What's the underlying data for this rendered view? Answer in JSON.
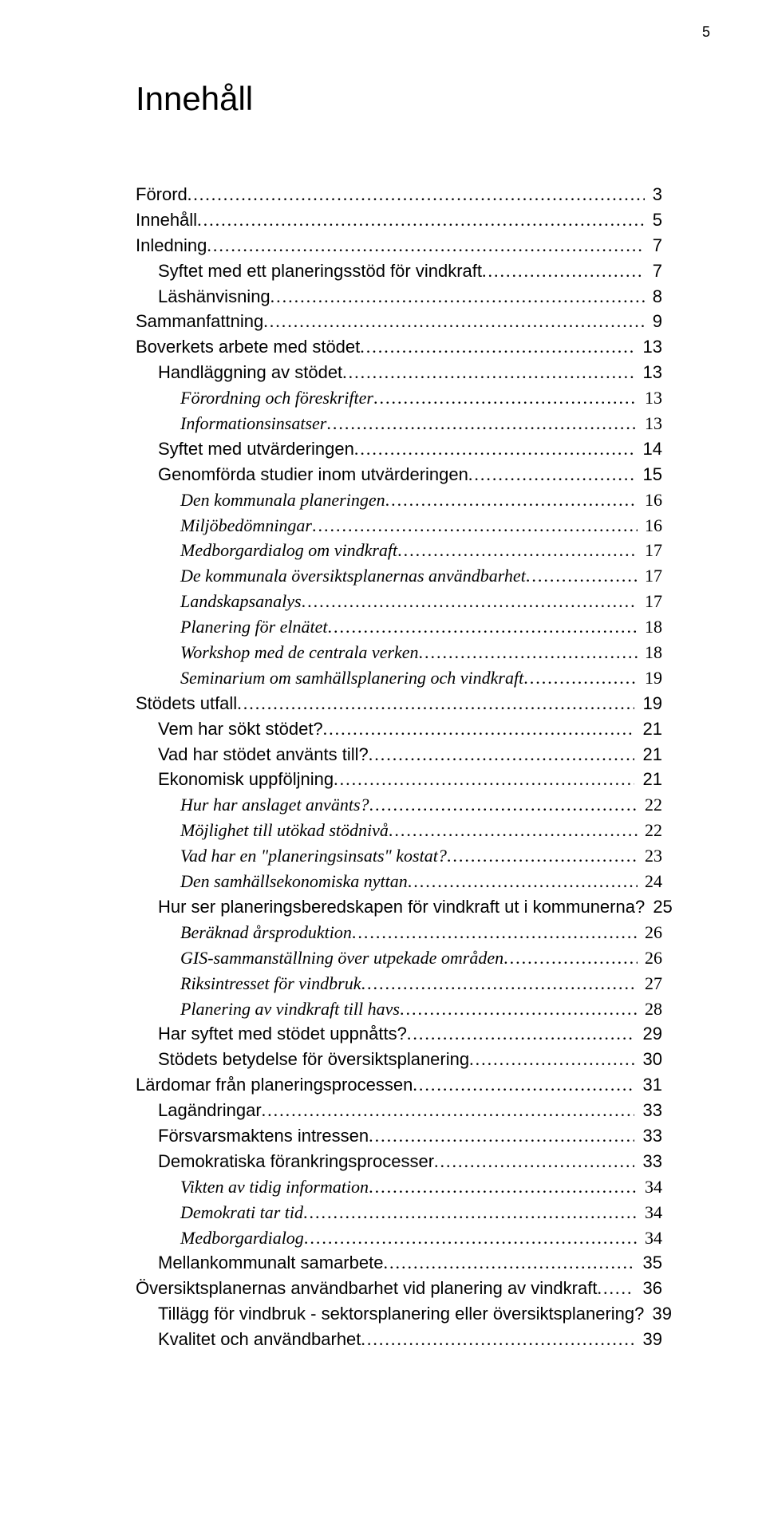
{
  "page_number": "5",
  "title": "Innehåll",
  "leader_char": ".",
  "entries": [
    {
      "label": "Förord",
      "page": "3",
      "indent": 0,
      "style": "h1"
    },
    {
      "label": "Innehåll",
      "page": "5",
      "indent": 0,
      "style": "h1"
    },
    {
      "label": "Inledning",
      "page": "7",
      "indent": 0,
      "style": "h1"
    },
    {
      "label": "Syftet med ett planeringsstöd för vindkraft",
      "page": "7",
      "indent": 1,
      "style": "h2"
    },
    {
      "label": "Läshänvisning",
      "page": "8",
      "indent": 1,
      "style": "h2"
    },
    {
      "label": "Sammanfattning",
      "page": "9",
      "indent": 0,
      "style": "h1"
    },
    {
      "label": "Boverkets arbete med stödet",
      "page": "13",
      "indent": 0,
      "style": "h1"
    },
    {
      "label": "Handläggning av stödet",
      "page": "13",
      "indent": 1,
      "style": "h2"
    },
    {
      "label": "Förordning och föreskrifter",
      "page": "13",
      "indent": 2,
      "style": "italic"
    },
    {
      "label": "Informationsinsatser",
      "page": "13",
      "indent": 2,
      "style": "italic"
    },
    {
      "label": "Syftet med utvärderingen",
      "page": "14",
      "indent": 1,
      "style": "h2"
    },
    {
      "label": "Genomförda studier inom utvärderingen",
      "page": "15",
      "indent": 1,
      "style": "h2"
    },
    {
      "label": "Den kommunala planeringen",
      "page": "16",
      "indent": 2,
      "style": "italic"
    },
    {
      "label": "Miljöbedömningar",
      "page": "16",
      "indent": 2,
      "style": "italic"
    },
    {
      "label": "Medborgardialog om vindkraft",
      "page": "17",
      "indent": 2,
      "style": "italic"
    },
    {
      "label": "De kommunala översiktsplanernas användbarhet",
      "page": "17",
      "indent": 2,
      "style": "italic"
    },
    {
      "label": "Landskapsanalys",
      "page": "17",
      "indent": 2,
      "style": "italic"
    },
    {
      "label": "Planering för elnätet",
      "page": "18",
      "indent": 2,
      "style": "italic"
    },
    {
      "label": "Workshop med de centrala verken",
      "page": "18",
      "indent": 2,
      "style": "italic"
    },
    {
      "label": "Seminarium om samhällsplanering och vindkraft",
      "page": "19",
      "indent": 2,
      "style": "italic"
    },
    {
      "label": "Stödets utfall",
      "page": "19",
      "indent": 0,
      "style": "h1"
    },
    {
      "label": "Vem har sökt stödet?",
      "page": "21",
      "indent": 1,
      "style": "h2"
    },
    {
      "label": "Vad har stödet använts till?",
      "page": "21",
      "indent": 1,
      "style": "h2"
    },
    {
      "label": "Ekonomisk uppföljning",
      "page": "21",
      "indent": 1,
      "style": "h2"
    },
    {
      "label": "Hur har anslaget använts?",
      "page": "22",
      "indent": 2,
      "style": "italic"
    },
    {
      "label": "Möjlighet till utökad stödnivå",
      "page": "22",
      "indent": 2,
      "style": "italic"
    },
    {
      "label": "Vad har en \"planeringsinsats\" kostat?",
      "page": "23",
      "indent": 2,
      "style": "italic"
    },
    {
      "label": "Den samhällsekonomiska nyttan",
      "page": "24",
      "indent": 2,
      "style": "italic"
    },
    {
      "label": "Hur ser planeringsberedskapen för vindkraft ut i kommunerna?",
      "page": "25",
      "indent": 1,
      "style": "h2"
    },
    {
      "label": "Beräknad årsproduktion",
      "page": "26",
      "indent": 2,
      "style": "italic"
    },
    {
      "label": "GIS-sammanställning över utpekade områden",
      "page": "26",
      "indent": 2,
      "style": "italic"
    },
    {
      "label": "Riksintresset för vindbruk",
      "page": "27",
      "indent": 2,
      "style": "italic"
    },
    {
      "label": "Planering av vindkraft till havs",
      "page": "28",
      "indent": 2,
      "style": "italic"
    },
    {
      "label": "Har syftet med stödet uppnåtts?",
      "page": "29",
      "indent": 1,
      "style": "h2"
    },
    {
      "label": "Stödets betydelse för översiktsplanering",
      "page": "30",
      "indent": 1,
      "style": "h2"
    },
    {
      "label": "Lärdomar från planeringsprocessen",
      "page": "31",
      "indent": 0,
      "style": "h1"
    },
    {
      "label": "Lagändringar",
      "page": "33",
      "indent": 1,
      "style": "h2"
    },
    {
      "label": "Försvarsmaktens intressen",
      "page": "33",
      "indent": 1,
      "style": "h2"
    },
    {
      "label": "Demokratiska förankringsprocesser",
      "page": "33",
      "indent": 1,
      "style": "h2"
    },
    {
      "label": "Vikten av tidig information",
      "page": "34",
      "indent": 2,
      "style": "italic"
    },
    {
      "label": "Demokrati tar tid",
      "page": "34",
      "indent": 2,
      "style": "italic"
    },
    {
      "label": "Medborgardialog",
      "page": "34",
      "indent": 2,
      "style": "italic"
    },
    {
      "label": "Mellankommunalt samarbete",
      "page": "35",
      "indent": 1,
      "style": "h2"
    },
    {
      "label": "Översiktsplanernas användbarhet vid planering av vindkraft",
      "page": "36",
      "indent": 0,
      "style": "h1"
    },
    {
      "label": "Tillägg för vindbruk - sektorsplanering eller översiktsplanering?",
      "page": "39",
      "indent": 1,
      "style": "h2"
    },
    {
      "label": "Kvalitet och användbarhet",
      "page": "39",
      "indent": 1,
      "style": "h2"
    }
  ]
}
